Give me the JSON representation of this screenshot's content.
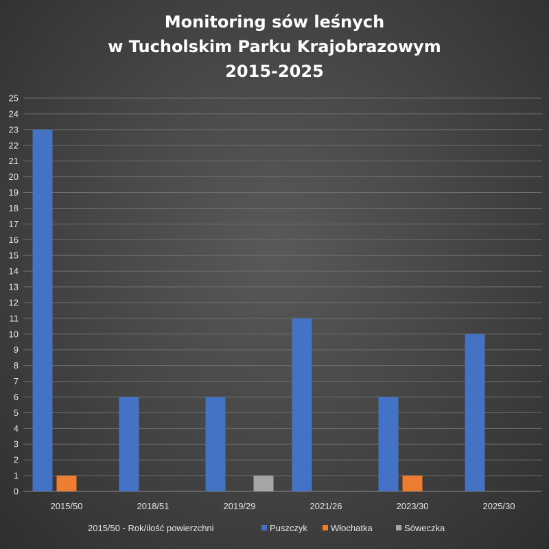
{
  "chart_data": {
    "type": "bar",
    "title_lines": [
      "Monitoring sów leśnych",
      "w Tucholskim Parku Krajobrazowym",
      "2015-2025"
    ],
    "categories": [
      "2015/50",
      "2018/51",
      "2019/29",
      "2021/26",
      "2023/30",
      "2025/30"
    ],
    "series": [
      {
        "name": "Puszczyk",
        "color": "#4472c4",
        "values": [
          23,
          6,
          6,
          11,
          6,
          10
        ]
      },
      {
        "name": "Włochatka",
        "color": "#ed7d31",
        "values": [
          1,
          0,
          0,
          0,
          1,
          0
        ]
      },
      {
        "name": "Sóweczka",
        "color": "#a5a5a5",
        "values": [
          0,
          0,
          1,
          0,
          0,
          0
        ]
      }
    ],
    "ylim": [
      0,
      25
    ],
    "yticks": [
      0,
      1,
      2,
      3,
      4,
      5,
      6,
      7,
      8,
      9,
      10,
      11,
      12,
      13,
      14,
      15,
      16,
      17,
      18,
      19,
      20,
      21,
      22,
      23,
      24,
      25
    ],
    "grid": true,
    "legend_position": "bottom",
    "legend_note": "2015/50 - Rok/ilość powierzchni"
  }
}
